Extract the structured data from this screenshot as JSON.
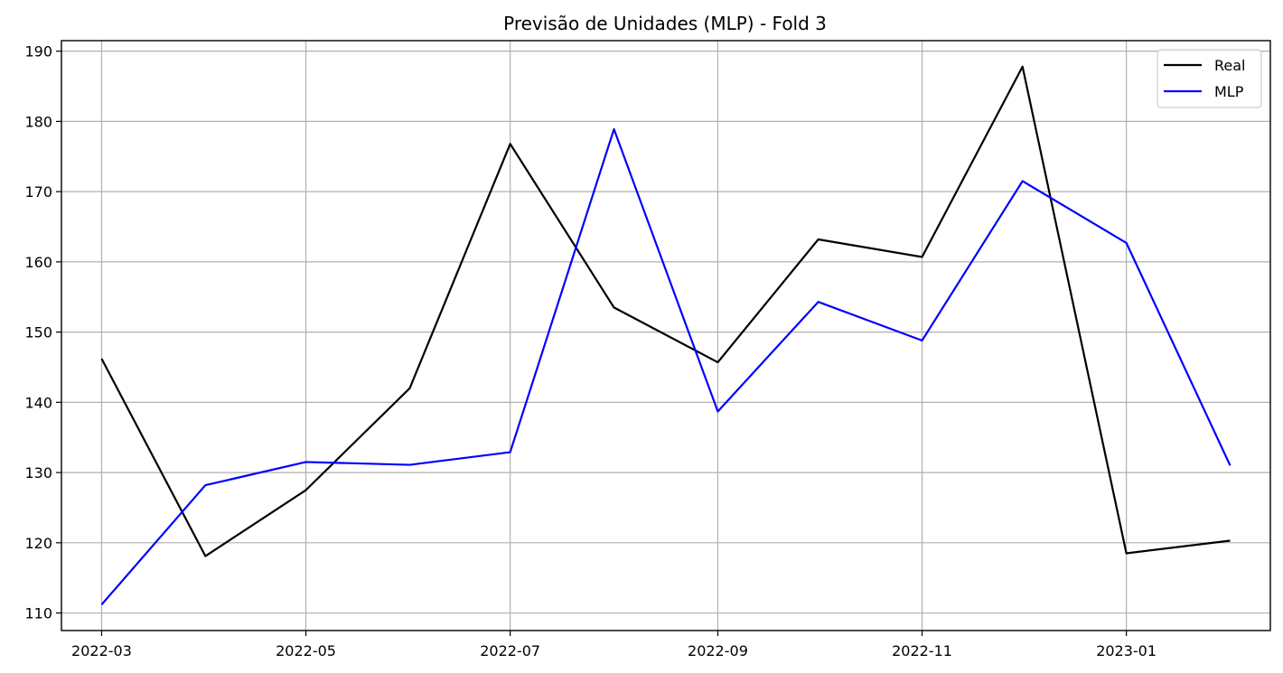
{
  "chart_data": {
    "type": "line",
    "title": "Previsão de Unidades (MLP) - Fold 3",
    "xlabel": "",
    "ylabel": "",
    "x": [
      "2022-03",
      "2022-04",
      "2022-05",
      "2022-06",
      "2022-07",
      "2022-08",
      "2022-09",
      "2022-10",
      "2022-11",
      "2022-12",
      "2023-01",
      "2023-02"
    ],
    "xticks": [
      "2022-03",
      "2022-05",
      "2022-07",
      "2022-09",
      "2022-11",
      "2023-01"
    ],
    "yticks": [
      110,
      120,
      130,
      140,
      150,
      160,
      170,
      180,
      190
    ],
    "ylim": [
      107.5,
      191.5
    ],
    "xlim": [
      "2022-02-17",
      "2023-02-13"
    ],
    "grid": true,
    "legend_position": "top-right",
    "series": [
      {
        "name": "Real",
        "color": "#000000",
        "values": [
          146.2,
          118.1,
          127.5,
          142.0,
          176.8,
          153.5,
          145.7,
          163.2,
          160.7,
          187.8,
          118.5,
          120.3
        ]
      },
      {
        "name": "MLP",
        "color": "#0000ff",
        "values": [
          111.2,
          128.2,
          131.5,
          131.1,
          132.9,
          178.9,
          138.7,
          154.3,
          148.8,
          171.5,
          162.7,
          131.0
        ]
      }
    ]
  }
}
